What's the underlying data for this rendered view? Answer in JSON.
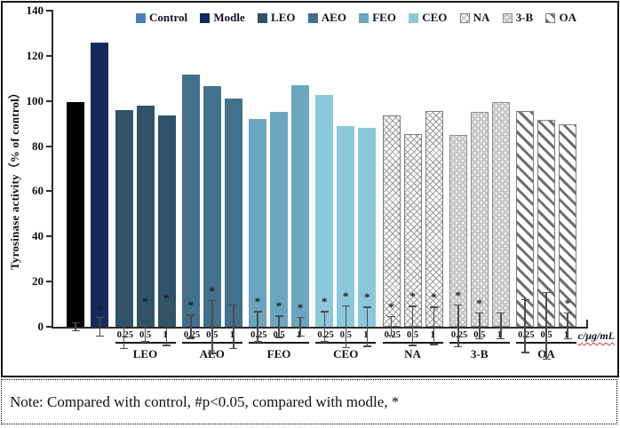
{
  "figure": {
    "note": "Note: Compared with control, #p<0.05, compared with modle, *"
  },
  "colors": {
    "control_bar": "#000000",
    "control_legend": "#4a7ebb",
    "modle": "#16295f",
    "leo": "#2f5368",
    "aeo": "#42718b",
    "feo": "#6ba6c0",
    "ceo": "#8bc8da",
    "error_bar": "#4d4d4d",
    "axis": "#2b2b2b",
    "border": "#161616"
  },
  "chart_data": {
    "type": "bar",
    "title": "",
    "ylabel": "Tyrosinase activity（% of control）",
    "xlabel": "c/μg/mL",
    "ylim": [
      0,
      140
    ],
    "yticks": [
      0,
      20,
      40,
      60,
      80,
      100,
      120,
      140
    ],
    "grid": false,
    "legend_position": "top",
    "legend": [
      {
        "label": "Control",
        "style": "solid",
        "color": "#4a7ebb"
      },
      {
        "label": "Modle",
        "style": "solid",
        "color": "#16295f"
      },
      {
        "label": "LEO",
        "style": "solid",
        "color": "#2f5368"
      },
      {
        "label": "AEO",
        "style": "solid",
        "color": "#42718b"
      },
      {
        "label": "FEO",
        "style": "solid",
        "color": "#6ba6c0"
      },
      {
        "label": "CEO",
        "style": "solid",
        "color": "#8bc8da"
      },
      {
        "label": "NA",
        "style": "crosshatch",
        "color": "#9a9a9a"
      },
      {
        "label": "3-B",
        "style": "dots",
        "color": "#c9c9c9"
      },
      {
        "label": "OA",
        "style": "diagonal",
        "color": "#6e6e6e"
      }
    ],
    "concentration_labels": [
      "0.25",
      "0.5",
      "1"
    ],
    "groups": [
      {
        "name": "Control",
        "show_name": false,
        "style": "solid",
        "color": "#000000",
        "bars": [
          {
            "conc": "",
            "value": 99.5,
            "err": 2,
            "sig": ""
          }
        ]
      },
      {
        "name": "Modle",
        "show_name": false,
        "style": "solid",
        "color": "#16295f",
        "bars": [
          {
            "conc": "",
            "value": 126,
            "err": 4.5,
            "sig": "#"
          }
        ]
      },
      {
        "name": "LEO",
        "show_name": true,
        "style": "solid",
        "color": "#2f5368",
        "bars": [
          {
            "conc": "0.25",
            "value": 96,
            "err": 10,
            "sig": ""
          },
          {
            "conc": "0.5",
            "value": 98,
            "err": 7,
            "sig": "*"
          },
          {
            "conc": "1",
            "value": 93.5,
            "err": 8.5,
            "sig": "*"
          }
        ]
      },
      {
        "name": "AEO",
        "show_name": true,
        "style": "solid",
        "color": "#42718b",
        "bars": [
          {
            "conc": "0.25",
            "value": 111.5,
            "err": 5.5,
            "sig": "*"
          },
          {
            "conc": "0.5",
            "value": 106.5,
            "err": 12,
            "sig": "*"
          },
          {
            "conc": "1",
            "value": 101,
            "err": 10,
            "sig": ""
          }
        ]
      },
      {
        "name": "FEO",
        "show_name": true,
        "style": "solid",
        "color": "#6ba6c0",
        "bars": [
          {
            "conc": "0.25",
            "value": 92,
            "err": 7,
            "sig": "*"
          },
          {
            "conc": "0.5",
            "value": 95,
            "err": 5,
            "sig": "*"
          },
          {
            "conc": "1",
            "value": 107,
            "err": 4.5,
            "sig": "*"
          }
        ]
      },
      {
        "name": "CEO",
        "show_name": true,
        "style": "solid",
        "color": "#8bc8da",
        "bars": [
          {
            "conc": "0.25",
            "value": 102.5,
            "err": 7,
            "sig": "*"
          },
          {
            "conc": "0.5",
            "value": 89,
            "err": 9.5,
            "sig": "*"
          },
          {
            "conc": "1",
            "value": 88,
            "err": 9,
            "sig": "*"
          }
        ]
      },
      {
        "name": "NA",
        "show_name": true,
        "style": "crosshatch",
        "color": "#ffffff",
        "bars": [
          {
            "conc": "0.25",
            "value": 93.5,
            "err": 4.5,
            "sig": "*"
          },
          {
            "conc": "0.5",
            "value": 85.5,
            "err": 9,
            "sig": "*"
          },
          {
            "conc": "1",
            "value": 95.5,
            "err": 8.5,
            "sig": "*"
          }
        ]
      },
      {
        "name": "3-B",
        "show_name": true,
        "style": "dots",
        "color": "#c9c9c9",
        "bars": [
          {
            "conc": "0.25",
            "value": 85,
            "err": 9.5,
            "sig": "*"
          },
          {
            "conc": "0.5",
            "value": 95,
            "err": 6,
            "sig": "*"
          },
          {
            "conc": "1",
            "value": 99.5,
            "err": 6,
            "sig": ""
          }
        ]
      },
      {
        "name": "OA",
        "show_name": true,
        "style": "diagonal",
        "color": "#ffffff",
        "bars": [
          {
            "conc": "0.25",
            "value": 95.5,
            "err": 12,
            "sig": ""
          },
          {
            "conc": "0.5",
            "value": 91.5,
            "err": 15,
            "sig": ""
          },
          {
            "conc": "1",
            "value": 89.5,
            "err": 6,
            "sig": "*"
          }
        ]
      }
    ]
  }
}
